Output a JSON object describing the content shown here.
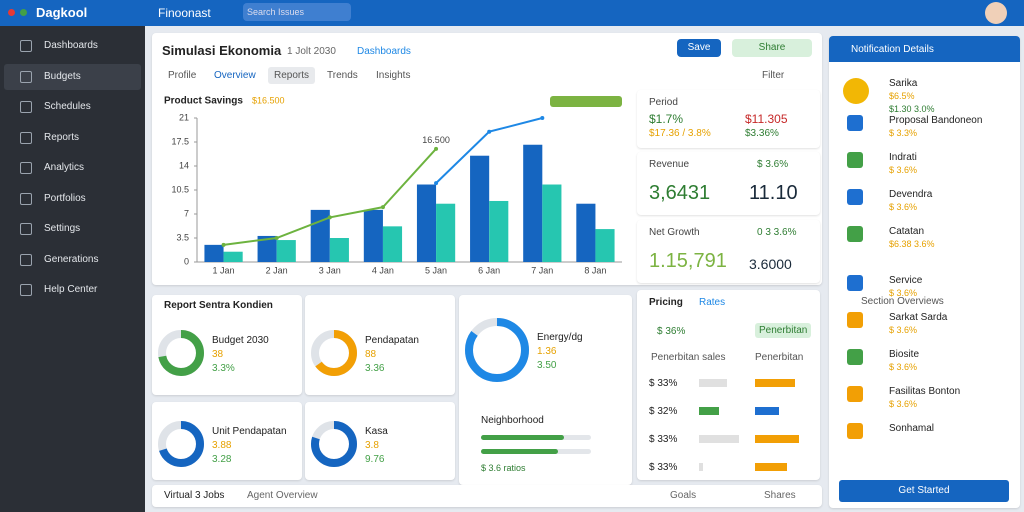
{
  "header": {
    "logo": "Dagkool",
    "tab": "Finoonast",
    "search": "Search Issues"
  },
  "sidebar": {
    "items": [
      "Dashboards",
      "Budgets",
      "Schedules",
      "Reports",
      "Analytics",
      "Portfolios",
      "Settings",
      "Generations",
      "Help Center"
    ]
  },
  "main": {
    "title": "Simulasi Ekonomia",
    "date": "1 Jolt 2030",
    "link": "Dashboards",
    "buttons": [
      "Save",
      "Share"
    ],
    "tabs": [
      "Profile",
      "Overview",
      "Reports",
      "Trends",
      "Insights"
    ],
    "filter": "Filter"
  },
  "chart_data": {
    "type": "bar",
    "title": "Product Savings",
    "badge": "$16.500",
    "annotation": "16.500",
    "categories": [
      "1 Jan",
      "2 Jan",
      "3 Jan",
      "4 Jan",
      "5 Jan",
      "6 Jan",
      "7 Jan",
      "8 Jan"
    ],
    "series": [
      {
        "color": "#1565c0",
        "values": [
          2.5,
          3.8,
          7.6,
          7.6,
          11.3,
          15.5,
          17.1,
          8.5
        ]
      },
      {
        "color": "#26c6b0",
        "values": [
          1.5,
          3.2,
          3.5,
          5.2,
          8.5,
          8.9,
          11.3,
          4.8
        ]
      },
      {
        "type": "line",
        "color": "#6db33f",
        "values": [
          2.5,
          3.5,
          6.5,
          8.0,
          16.5,
          null,
          null,
          null
        ]
      },
      {
        "type": "line",
        "color": "#1e88e5",
        "values": [
          null,
          null,
          null,
          null,
          11.5,
          19,
          21,
          null
        ]
      }
    ],
    "ylim": [
      0,
      21
    ],
    "yticks": [
      0,
      3.5,
      7,
      10.5,
      14,
      17.5,
      21
    ],
    "grid": false
  },
  "kpis": [
    {
      "label": "Period",
      "left": "$1.7%",
      "right": "$11.305",
      "note": "$17.36 / 3.8%",
      "tag": "$3.36%"
    },
    {
      "label": "Revenue",
      "tag": "$ 3.6%",
      "left": "3,6431",
      "right": "11.10"
    },
    {
      "label": "Net Growth",
      "tag": "0 3 3.6%",
      "left": "1.15,791",
      "right": "3.6000"
    }
  ],
  "report": {
    "title": "Report Sentra Kondien",
    "cards": [
      {
        "label": "Budget 2030",
        "value": "38",
        "pct": "3.3%",
        "share": 72
      },
      {
        "label": "Pendapatan",
        "value": "88",
        "pct": "3.36",
        "share": 65
      },
      {
        "label": "Energy/dg",
        "value": "1.36",
        "pct": "3.50",
        "share": 85
      },
      {
        "label": "Unit Pendapatan",
        "value": "3.88",
        "pct": "3.28",
        "share": 70
      },
      {
        "label": "Kasa",
        "value": "3.8",
        "pct": "9.76",
        "share": 80
      }
    ]
  },
  "neighborhood": {
    "title": "Neighborhood",
    "bars": [
      75,
      70
    ],
    "note": "$ 3.6 ratios"
  },
  "pricing": {
    "title": "Pricing",
    "tag": "Rates",
    "head": [
      "Penerbitan sales",
      "Penerbitan"
    ],
    "top": [
      "$ 36%",
      "Penerbitan"
    ],
    "rows": [
      {
        "label": "$ 33%",
        "a": 35,
        "b": 50
      },
      {
        "label": "$ 32%",
        "a": 25,
        "b": 30
      },
      {
        "label": "$ 33%",
        "a": 50,
        "b": 55
      },
      {
        "label": "$ 33%",
        "a": 5,
        "b": 40
      }
    ]
  },
  "notifications": {
    "title": "Notification Details",
    "items": [
      {
        "title": "Sarika",
        "a": "$6.5%",
        "b": "$1.30 3.0%"
      },
      {
        "title": "Proposal Bandoneon",
        "a": "$ 3.3%"
      },
      {
        "title": "Indrati",
        "a": "$ 3.6%"
      },
      {
        "title": "Devendra",
        "a": "$ 3.6%"
      },
      {
        "title": "Catatan",
        "a": "$6.38 3.6%"
      },
      {
        "title": "Service",
        "a": "$ 3.6%"
      },
      {
        "title": "Sarkat Sarda",
        "a": "$ 3.6%"
      },
      {
        "title": "Biosite",
        "a": "$ 3.6%"
      },
      {
        "title": "Fasilitas Bonton",
        "a": "$ 3.6%"
      },
      {
        "title": "Sonhamal"
      }
    ],
    "section": "Section Overviews",
    "button": "Get Started"
  },
  "footer": {
    "left": "Virtual 3 Jobs",
    "mid": "Agent Overview",
    "right": [
      "Goals",
      "Shares"
    ]
  }
}
